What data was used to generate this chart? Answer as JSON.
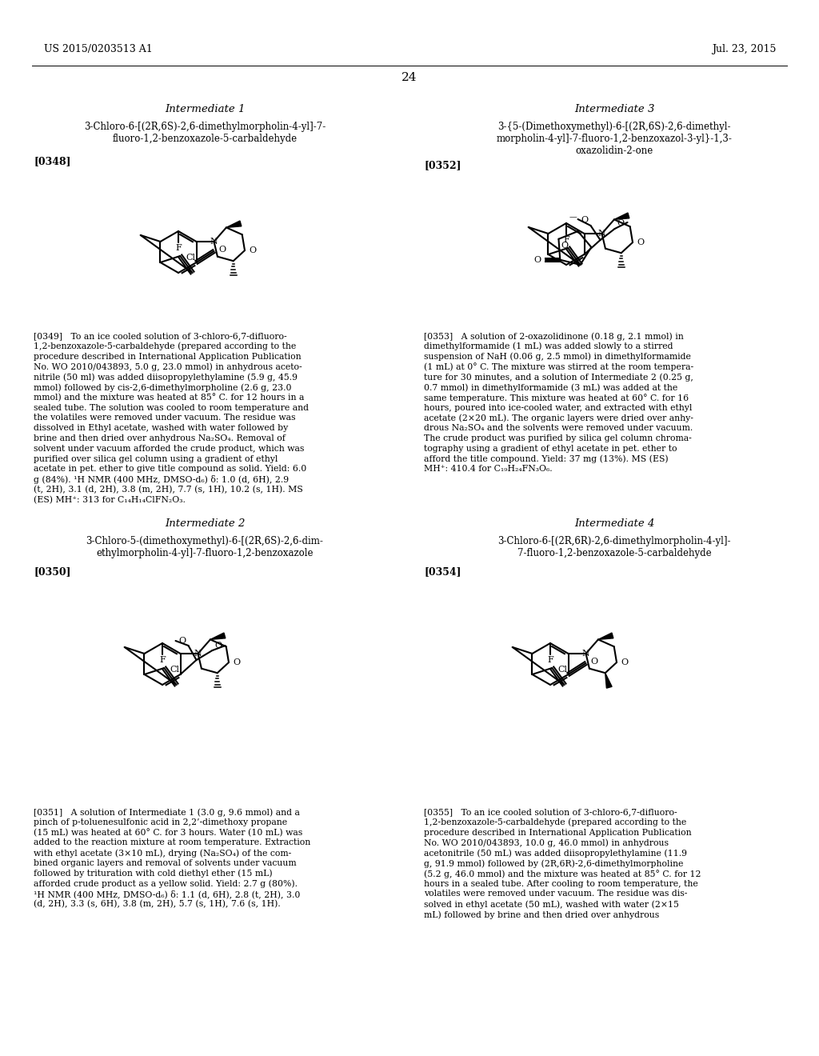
{
  "bg": "#ffffff",
  "header_left": "US 2015/0203513 A1",
  "header_right": "Jul. 23, 2015",
  "page_num": "24",
  "int1_title": "Intermediate 1",
  "int1_subtitle": "3-Chloro-6-[(2R,6S)-2,6-dimethylmorpholin-4-yl]-7-\nfluoro-1,2-benzoxazole-5-carbaldehyde",
  "int1_tag": "[0348]",
  "int1_body": "[0349]   To an ice cooled solution of 3-chloro-6,7-difluoro-1,2-benzoxazole-5-carbaldehyde (prepared according to the procedure described in International Application Publication No. WO 2010/043893, 5.0 g, 23.0 mmol) in anhydrous acetonitrile (50 ml) was added diisopropylethylamine (5.9 g, 45.9 mmol) followed by cis-2,6-dimethylmorpholine (2.6 g, 23.0 mmol) and the mixture was heated at 85° C. for 12 hours in a sealed tube. The solution was cooled to room temperature and the volatiles were removed under vacuum. The residue was dissolved in Ethyl acetate, washed with water followed by brine and then dried over anhydrous Na2SO4. Removal of solvent under vacuum afforded the crude product, which was purified over silica gel column using a gradient of ethyl acetate in pet. ether to give title compound as solid. Yield: 6.0 g (84%). 1H NMR (400 MHz, DMSO-d6) δ: 1.0 (d, 6H), 2.9 (t, 2H), 3.1 (d, 2H), 3.8 (m, 2H), 7.7 (s, 1H), 10.2 (s, 1H). MS (ES) MH+: 313 for C14H14ClFN2O3.",
  "int3_title": "Intermediate 3",
  "int3_subtitle": "3-{5-(Dimethoxymethyl)-6-[(2R,6S)-2,6-dimethyl-\nmorpholin-4-yl]-7-fluoro-1,2-benzoxazol-3-yl}-1,3-\noxazolidin-2-one",
  "int3_tag": "[0352]",
  "int3_body": "[0353]   A solution of 2-oxazolidinone (0.18 g, 2.1 mmol) in dimethylformamide (1 mL) was added slowly to a stirred suspension of NaH (0.06 g, 2.5 mmol) in dimethylformamide (1 mL) at 0° C. The mixture was stirred at the room temperature for 30 minutes, and a solution of Intermediate 2 (0.25 g, 0.7 mmol) in dimethylformamide (3 mL) was added at the same temperature. This mixture was heated at 60° C. for 16 hours, poured into ice-cooled water, and extracted with ethyl acetate (2×20 mL). The organic layers were dried over anhydrous Na2SO4 and the solvents were removed under vacuum. The crude product was purified by silica gel column chromatography using a gradient of ethyl acetate in pet. ether to afford the title compound. Yield: 37 mg (13%). MS (ES) MH+: 410.4 for C19H24FN3O6.",
  "int2_title": "Intermediate 2",
  "int2_subtitle": "3-Chloro-5-(dimethoxymethyl)-6-[(2R,6S)-2,6-dim-\nethylmorpholin-4-yl]-7-fluoro-1,2-benzoxazole",
  "int2_tag": "[0350]",
  "int2_body": "[0351]   A solution of Intermediate 1 (3.0 g, 9.6 mmol) and a pinch of p-toluenesulfonic acid in 2,2’-dimethoxy propane (15 mL) was heated at 60° C. for 3 hours. Water (10 mL) was added to the reaction mixture at room temperature. Extraction with ethyl acetate (3×10 mL), drying (Na2SO4) of the combined organic layers and removal of solvents under vacuum followed by trituration with cold diethyl ether (15 mL) afforded crude product as a yellow solid. Yield: 2.7 g (80%). 1H NMR (400 MHz, DMSO-d6) δ: 1.1 (d, 6H), 2.8 (t, 2H), 3.0 (d, 2H), 3.3 (s, 6H), 3.8 (m, 2H), 5.7 (s, 1H), 7.6 (s, 1H).",
  "int4_title": "Intermediate 4",
  "int4_subtitle": "3-Chloro-6-[(2R,6R)-2,6-dimethylmorpholin-4-yl]-\n7-fluoro-1,2-benzoxazole-5-carbaldehyde",
  "int4_tag": "[0354]",
  "int4_body": "[0355]   To an ice cooled solution of 3-chloro-6,7-difluoro-1,2-benzoxazole-5-carbaldehyde (prepared according to the procedure described in International Application Publication No. WO 2010/043893, 10.0 g, 46.0 mmol) in anhydrous acetonitrile (50 mL) was added diisopropylethylamine (11.9 g, 91.9 mmol) followed by (2R,6R)-2,6-dimethylmorpholine (5.2 g, 46.0 mmol) and the mixture was heated at 85° C. for 12 hours in a sealed tube. After cooling to room temperature, the volatiles were removed under vacuum. The residue was dissolved in ethyl acetate (50 mL), washed with water (2×15 mL) followed by brine and then dried over anhydrous"
}
